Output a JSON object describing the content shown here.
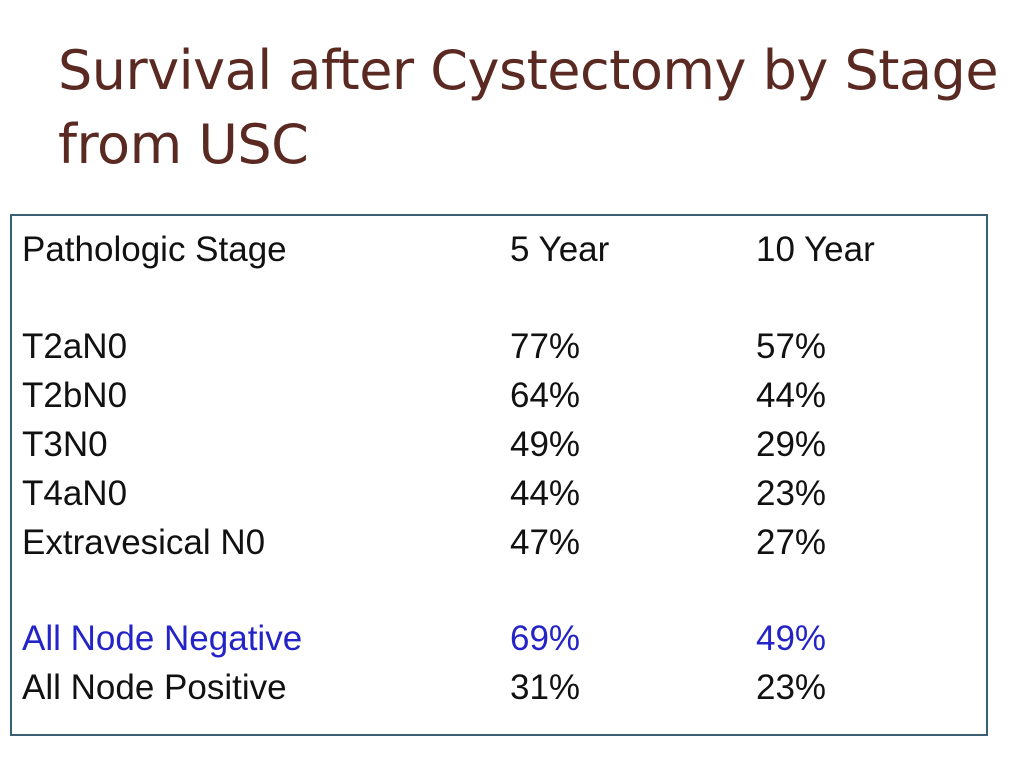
{
  "slide": {
    "title": "Survival after Cystectomy by Stage from USC"
  },
  "table": {
    "headers": [
      "Pathologic Stage",
      "5 Year",
      "10 Year"
    ],
    "rows": [
      {
        "stage": "T2aN0",
        "five_year": "77%",
        "ten_year": "57%"
      },
      {
        "stage": "T2bN0",
        "five_year": "64%",
        "ten_year": "44%"
      },
      {
        "stage": "T3N0",
        "five_year": "49%",
        "ten_year": "29%"
      },
      {
        "stage": "T4aN0",
        "five_year": "44%",
        "ten_year": "23%"
      },
      {
        "stage": "Extravesical N0",
        "five_year": "47%",
        "ten_year": "27%"
      }
    ],
    "summary_rows": [
      {
        "stage": "All Node Negative",
        "five_year": "69%",
        "ten_year": "49%"
      },
      {
        "stage": "All Node Positive",
        "five_year": "31%",
        "ten_year": "23%"
      }
    ]
  },
  "colors": {
    "title": "#5a2a22",
    "border": "#3d5f73",
    "highlight": "#2323c8",
    "text": "#111111"
  }
}
